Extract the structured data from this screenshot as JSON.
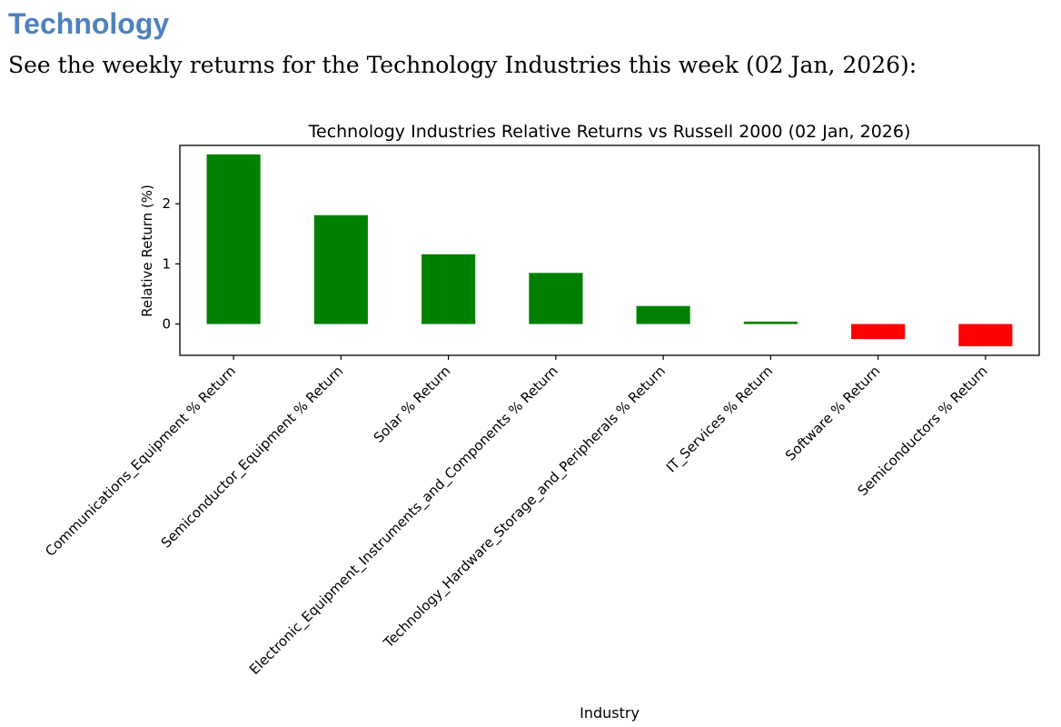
{
  "section": {
    "heading": "Technology",
    "intro": "See the weekly returns for the Technology Industries this week (02 Jan, 2026):"
  },
  "chart_data": {
    "type": "bar",
    "title": "Technology Industries Relative Returns vs Russell 2000 (02 Jan, 2026)",
    "xlabel": "Industry",
    "ylabel": "Relative Return (%)",
    "ylim": [
      -0.52,
      2.97
    ],
    "yticks": [
      0,
      1,
      2
    ],
    "grid": false,
    "categories": [
      "Communications_Equipment % Return",
      "Semiconductor_Equipment % Return",
      "Solar % Return",
      "Electronic_Equipment_Instruments_and_Components % Return",
      "Technology_Hardware_Storage_and_Peripherals % Return",
      "IT_Services % Return",
      "Software % Return",
      "Semiconductors % Return"
    ],
    "values": [
      2.82,
      1.81,
      1.16,
      0.85,
      0.3,
      0.04,
      -0.25,
      -0.37
    ],
    "colors": {
      "positive": "#008000",
      "negative": "#ff0000"
    }
  }
}
